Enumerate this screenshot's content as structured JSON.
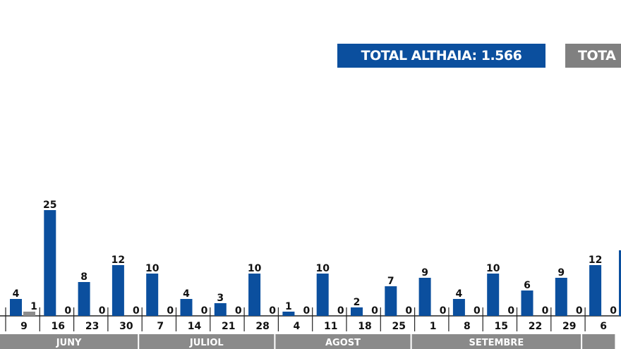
{
  "legend": [
    {
      "label": "TOTAL ALTHAIA: 1.566",
      "color": "#0b4f9e"
    },
    {
      "label": "TOTA",
      "color": "#808080"
    }
  ],
  "chart_data": {
    "type": "bar",
    "categories": [
      "9",
      "16",
      "23",
      "30",
      "7",
      "14",
      "21",
      "28",
      "4",
      "11",
      "18",
      "25",
      "1",
      "8",
      "15",
      "22",
      "29",
      "6"
    ],
    "months": [
      {
        "label": "JUNY",
        "weeks": 4
      },
      {
        "label": "JULIOL",
        "weeks": 4
      },
      {
        "label": "AGOST",
        "weeks": 4
      },
      {
        "label": "SETEMBRE",
        "weeks": 5
      },
      {
        "label": "",
        "weeks": 1
      }
    ],
    "series": [
      {
        "name": "TOTAL ALTHAIA: 1.566",
        "color": "#0b4f9e",
        "values": [
          4,
          25,
          8,
          12,
          10,
          4,
          3,
          10,
          1,
          10,
          2,
          7,
          9,
          4,
          10,
          6,
          9,
          12
        ]
      },
      {
        "name": "TOTA",
        "color": "#8c8c8c",
        "values": [
          1,
          0,
          0,
          0,
          0,
          0,
          0,
          0,
          0,
          0,
          0,
          0,
          0,
          0,
          0,
          0,
          0,
          0
        ]
      }
    ],
    "grid": false
  }
}
